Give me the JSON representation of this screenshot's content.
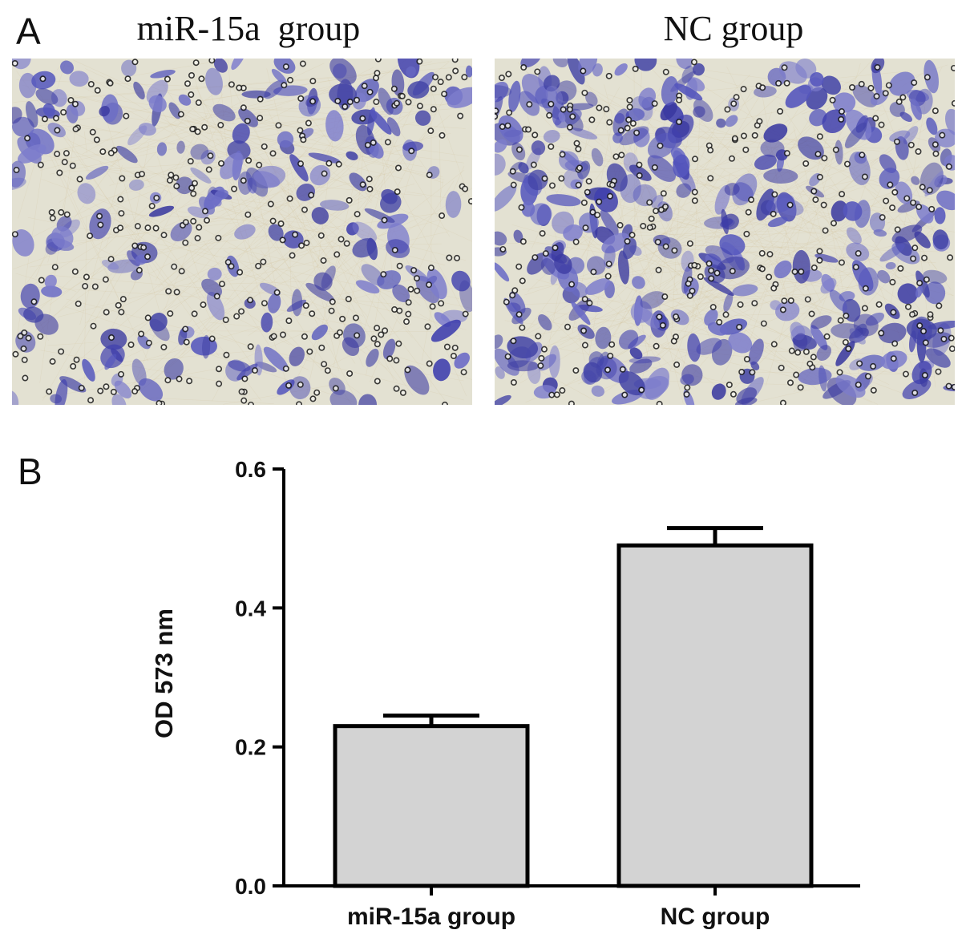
{
  "panels": {
    "a_label": "A",
    "b_label": "B"
  },
  "micrographs": [
    {
      "title": "miR-15a  group",
      "stain_color": "#4b4cb4",
      "background_color": "#e3e1d2",
      "cell_density": 0.42
    },
    {
      "title": "NC group",
      "stain_color": "#4b4cb4",
      "background_color": "#e3e1d2",
      "cell_density": 0.7
    }
  ],
  "chart_data": {
    "type": "bar",
    "categories": [
      "miR-15a group",
      "NC group"
    ],
    "values": [
      0.23,
      0.49
    ],
    "errors": [
      0.015,
      0.025
    ],
    "ylabel": "OD 573 nm",
    "xlabel": "",
    "ylim": [
      0.0,
      0.6
    ],
    "yticks": [
      "0.0",
      "0.2",
      "0.4",
      "0.6"
    ],
    "bar_color": "#d3d3d3",
    "edge_color": "#000000",
    "grid": false
  }
}
